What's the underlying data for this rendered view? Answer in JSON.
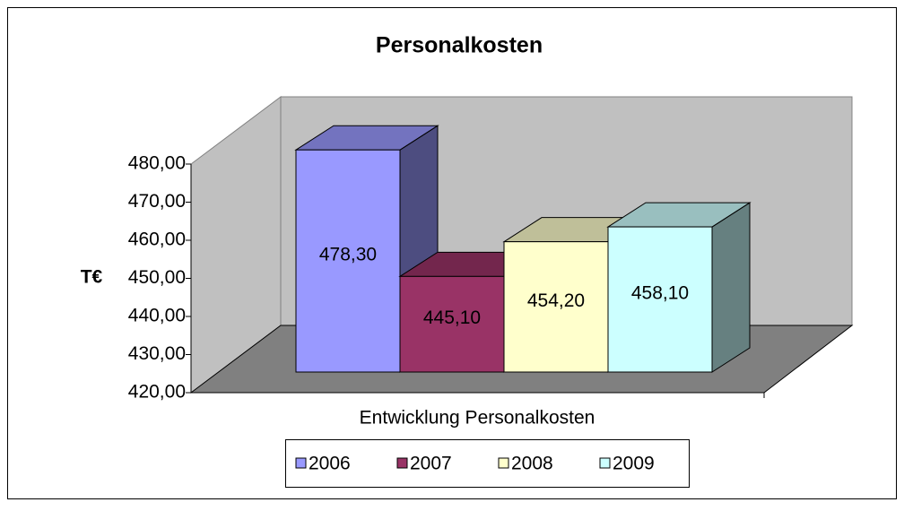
{
  "chart_data": {
    "type": "bar3d",
    "title": "Personalkosten",
    "ylabel": "T€",
    "categories": [
      "Entwicklung Personalkosten"
    ],
    "series": [
      {
        "name": "2006",
        "color": "#9999ff",
        "values": [
          478.3
        ],
        "value_labels": [
          "478,30"
        ]
      },
      {
        "name": "2007",
        "color": "#993366",
        "values": [
          445.1
        ],
        "value_labels": [
          "445,10"
        ]
      },
      {
        "name": "2008",
        "color": "#ffffcc",
        "values": [
          454.2
        ],
        "value_labels": [
          "454,20"
        ]
      },
      {
        "name": "2009",
        "color": "#ccffff",
        "values": [
          458.1
        ],
        "value_labels": [
          "458,10"
        ]
      }
    ],
    "ylim": [
      420,
      480
    ],
    "yticks": [
      {
        "value": 420,
        "label": "420,00"
      },
      {
        "value": 430,
        "label": "430,00"
      },
      {
        "value": 440,
        "label": "440,00"
      },
      {
        "value": 450,
        "label": "450,00"
      },
      {
        "value": 460,
        "label": "460,00"
      },
      {
        "value": 470,
        "label": "470,00"
      },
      {
        "value": 480,
        "label": "480,00"
      }
    ],
    "grid": false,
    "legend": "bottom"
  }
}
